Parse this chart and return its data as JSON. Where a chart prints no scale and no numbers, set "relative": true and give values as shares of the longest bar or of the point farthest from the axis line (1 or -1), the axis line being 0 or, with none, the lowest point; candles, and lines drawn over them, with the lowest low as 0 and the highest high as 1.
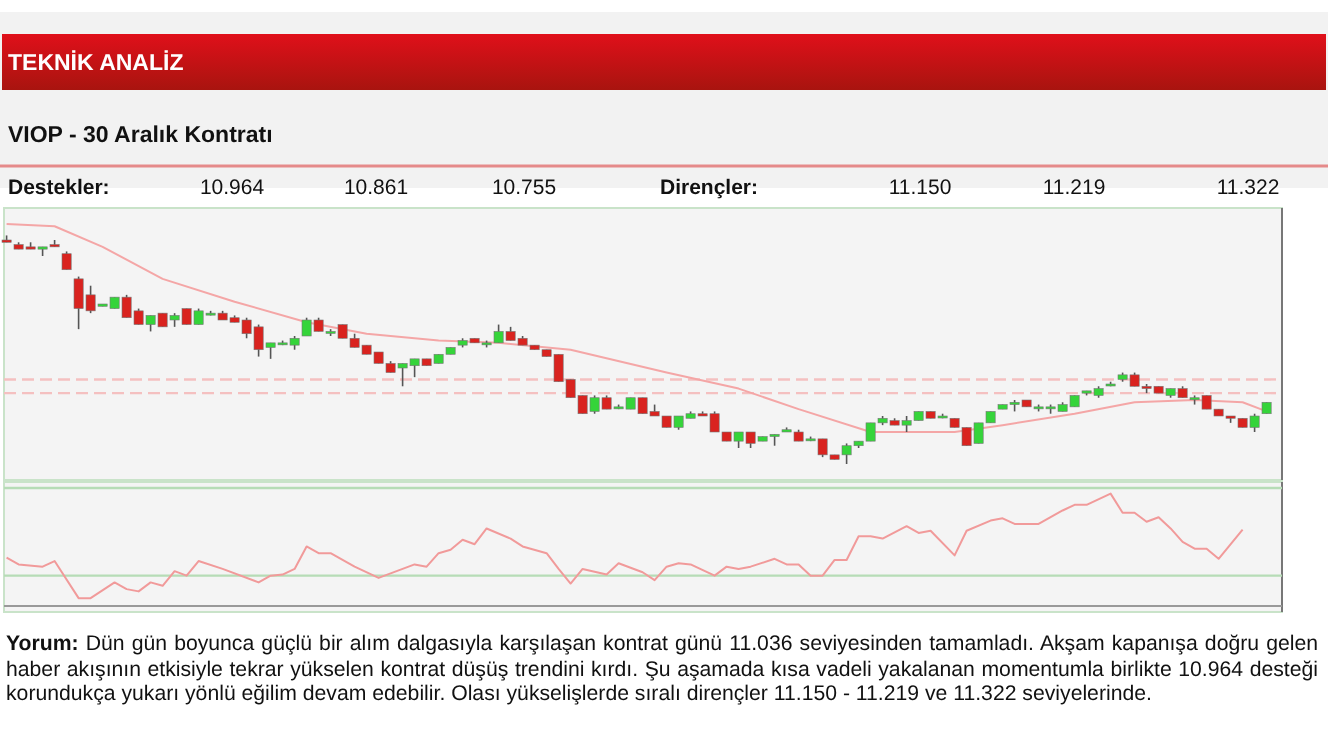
{
  "chart_data": [
    {
      "type": "candlestick",
      "title": "TEKNİK ANALİZ",
      "subtitle": "VIOP - 30 Aralık Kontratı",
      "relative": true,
      "annotations": [
        "Destekler:",
        "10.964",
        "10.861",
        "10.755",
        "Dirençler:",
        "11.150",
        "11.219",
        "11.322",
        "Yorum: Dün gün boyunca güçlü bir alım dalgasıyla karşılaşan kontrat günü 11.036 seviyesinden tamamladı. Akşam kapanışa doğru gelen haber akışının etkisiyle tekrar yükselen kontrat düşüş trendini kırdı. Şu aşamada kısa vadeli yakalanan momentumla birlikte 10.964 desteği korundukça yukarı yönlü eğilim devam edebilir. Olası yükselişlerde sıralı dirençler 11.150 - 11.219 ve 11.322 seviyelerinde."
      ],
      "categories": [
        null,
        null,
        null,
        null,
        null,
        null,
        null,
        null,
        null,
        null,
        null,
        null,
        null,
        null,
        null,
        null,
        null,
        null,
        null,
        null,
        null,
        null,
        null,
        null,
        null,
        null,
        null,
        null,
        null,
        null,
        null,
        null,
        null,
        null,
        null,
        null,
        null,
        null,
        null,
        null,
        null,
        null,
        null,
        null,
        null,
        null,
        null,
        null,
        null,
        null,
        null,
        null,
        null,
        null,
        null,
        null,
        null,
        null,
        null,
        null,
        null,
        null,
        null,
        null,
        null,
        null,
        null,
        null,
        null,
        null,
        null,
        null,
        null,
        null,
        null,
        null,
        null,
        null,
        null,
        null,
        null,
        null,
        null,
        null,
        null,
        null,
        null,
        null,
        null,
        null,
        null,
        null,
        null,
        null,
        null,
        null,
        null,
        null,
        null,
        null,
        null,
        null,
        null,
        null,
        null,
        null
      ],
      "ohlc": [
        [
          0.98,
          1,
          0.97,
          0.97
        ],
        [
          0.96,
          0.97,
          0.94,
          0.94
        ],
        [
          0.95,
          0.97,
          0.94,
          0.94
        ],
        [
          0.94,
          0.95,
          0.91,
          0.95
        ],
        [
          0.96,
          0.98,
          0.95,
          0.95
        ],
        [
          0.92,
          0.93,
          0.85,
          0.85
        ],
        [
          0.81,
          0.82,
          0.59,
          0.68
        ],
        [
          0.74,
          0.78,
          0.66,
          0.67
        ],
        [
          0.69,
          0.7,
          0.69,
          0.7
        ],
        [
          0.68,
          0.73,
          0.68,
          0.73
        ],
        [
          0.73,
          0.74,
          0.64,
          0.64
        ],
        [
          0.67,
          0.68,
          0.61,
          0.61
        ],
        [
          0.61,
          0.65,
          0.58,
          0.65
        ],
        [
          0.66,
          0.66,
          0.6,
          0.6
        ],
        [
          0.63,
          0.66,
          0.6,
          0.65
        ],
        [
          0.68,
          0.68,
          0.61,
          0.61
        ],
        [
          0.61,
          0.68,
          0.61,
          0.67
        ],
        [
          0.66,
          0.67,
          0.65,
          0.66
        ],
        [
          0.66,
          0.67,
          0.63,
          0.63
        ],
        [
          0.64,
          0.65,
          0.62,
          0.62
        ],
        [
          0.63,
          0.64,
          0.55,
          0.57
        ],
        [
          0.6,
          0.61,
          0.47,
          0.5
        ],
        [
          0.51,
          0.53,
          0.46,
          0.53
        ],
        [
          0.53,
          0.54,
          0.52,
          0.53
        ],
        [
          0.52,
          0.56,
          0.5,
          0.55
        ],
        [
          0.56,
          0.64,
          0.56,
          0.63
        ],
        [
          0.63,
          0.64,
          0.58,
          0.58
        ],
        [
          0.58,
          0.59,
          0.56,
          0.58
        ],
        [
          0.61,
          0.61,
          0.55,
          0.55
        ],
        [
          0.55,
          0.57,
          0.51,
          0.51
        ],
        [
          0.52,
          0.52,
          0.48,
          0.48
        ],
        [
          0.49,
          0.49,
          0.44,
          0.44
        ],
        [
          0.44,
          0.45,
          0.4,
          0.4
        ],
        [
          0.42,
          0.44,
          0.34,
          0.44
        ],
        [
          0.43,
          0.46,
          0.38,
          0.46
        ],
        [
          0.46,
          0.46,
          0.43,
          0.43
        ],
        [
          0.44,
          0.48,
          0.44,
          0.48
        ],
        [
          0.48,
          0.51,
          0.48,
          0.51
        ],
        [
          0.52,
          0.55,
          0.51,
          0.54
        ],
        [
          0.55,
          0.55,
          0.53,
          0.53
        ],
        [
          0.53,
          0.54,
          0.51,
          0.53
        ],
        [
          0.53,
          0.61,
          0.53,
          0.58
        ],
        [
          0.58,
          0.6,
          0.54,
          0.54
        ],
        [
          0.55,
          0.56,
          0.52,
          0.52
        ],
        [
          0.52,
          0.52,
          0.5,
          0.5
        ],
        [
          0.5,
          0.5,
          0.47,
          0.47
        ],
        [
          0.48,
          0.48,
          0.36,
          0.36
        ],
        [
          0.37,
          0.37,
          0.29,
          0.29
        ],
        [
          0.3,
          0.3,
          0.22,
          0.22
        ],
        [
          0.23,
          0.3,
          0.22,
          0.29
        ],
        [
          0.29,
          0.3,
          0.24,
          0.24
        ],
        [
          0.25,
          0.26,
          0.24,
          0.25
        ],
        [
          0.24,
          0.29,
          0.24,
          0.29
        ],
        [
          0.29,
          0.29,
          0.22,
          0.22
        ],
        [
          0.23,
          0.26,
          0.21,
          0.21
        ],
        [
          0.21,
          0.21,
          0.16,
          0.16
        ],
        [
          0.16,
          0.21,
          0.15,
          0.21
        ],
        [
          0.2,
          0.23,
          0.2,
          0.22
        ],
        [
          0.22,
          0.23,
          0.21,
          0.21
        ],
        [
          0.22,
          0.23,
          0.14,
          0.14
        ],
        [
          0.14,
          0.14,
          0.1,
          0.1
        ],
        [
          0.1,
          0.14,
          0.07,
          0.14
        ],
        [
          0.14,
          0.14,
          0.07,
          0.09
        ],
        [
          0.1,
          0.12,
          0.1,
          0.12
        ],
        [
          0.12,
          0.13,
          0.08,
          0.13
        ],
        [
          0.14,
          0.16,
          0.14,
          0.15
        ],
        [
          0.14,
          0.15,
          0.1,
          0.1
        ],
        [
          0.11,
          0.12,
          0.1,
          0.11
        ],
        [
          0.11,
          0.11,
          0.03,
          0.04
        ],
        [
          0.04,
          0.04,
          0.02,
          0.02
        ],
        [
          0.04,
          0.09,
          0,
          0.08
        ],
        [
          0.08,
          0.1,
          0.07,
          0.1
        ],
        [
          0.1,
          0.18,
          0.1,
          0.18
        ],
        [
          0.18,
          0.21,
          0.17,
          0.2
        ],
        [
          0.19,
          0.2,
          0.17,
          0.17
        ],
        [
          0.17,
          0.21,
          0.14,
          0.19
        ],
        [
          0.19,
          0.23,
          0.19,
          0.23
        ],
        [
          0.23,
          0.23,
          0.2,
          0.2
        ],
        [
          0.21,
          0.22,
          0.2,
          0.21
        ],
        [
          0.2,
          0.2,
          0.16,
          0.16
        ],
        [
          0.16,
          0.16,
          0.08,
          0.08
        ],
        [
          0.09,
          0.18,
          0.09,
          0.18
        ],
        [
          0.18,
          0.23,
          0.18,
          0.23
        ],
        [
          0.24,
          0.26,
          0.24,
          0.26
        ],
        [
          0.26,
          0.28,
          0.23,
          0.27
        ],
        [
          0.28,
          0.28,
          0.25,
          0.25
        ],
        [
          0.25,
          0.26,
          0.23,
          0.25
        ],
        [
          0.25,
          0.26,
          0.22,
          0.25
        ],
        [
          0.23,
          0.27,
          0.23,
          0.26
        ],
        [
          0.25,
          0.3,
          0.25,
          0.3
        ],
        [
          0.31,
          0.32,
          0.3,
          0.32
        ],
        [
          0.3,
          0.34,
          0.29,
          0.33
        ],
        [
          0.35,
          0.36,
          0.34,
          0.35
        ],
        [
          0.37,
          0.4,
          0.36,
          0.39
        ],
        [
          0.39,
          0.4,
          0.34,
          0.34
        ],
        [
          0.34,
          0.35,
          0.31,
          0.33
        ],
        [
          0.34,
          0.34,
          0.31,
          0.31
        ],
        [
          0.3,
          0.33,
          0.29,
          0.33
        ],
        [
          0.33,
          0.34,
          0.29,
          0.29
        ],
        [
          0.29,
          0.3,
          0.26,
          0.29
        ],
        [
          0.3,
          0.3,
          0.24,
          0.24
        ],
        [
          0.24,
          0.24,
          0.21,
          0.21
        ],
        [
          0.21,
          0.21,
          0.18,
          0.2
        ],
        [
          0.2,
          0.2,
          0.16,
          0.16
        ],
        [
          0.16,
          0.22,
          0.14,
          0.21
        ],
        [
          0.22,
          0.27,
          0.22,
          0.27
        ]
      ],
      "colors": [
        "#d9231f",
        "#d9231f",
        "#d9231f",
        "#35d43a",
        "#d9231f",
        "#d9231f",
        "#d9231f",
        "#d9231f",
        "#35d43a",
        "#35d43a",
        "#d9231f",
        "#d9231f",
        "#35d43a",
        "#d9231f",
        "#35d43a",
        "#d9231f",
        "#35d43a",
        "#35d43a",
        "#d9231f",
        "#d9231f",
        "#d9231f",
        "#d9231f",
        "#35d43a",
        "#35d43a",
        "#35d43a",
        "#35d43a",
        "#d9231f",
        "#35d43a",
        "#d9231f",
        "#d9231f",
        "#d9231f",
        "#d9231f",
        "#d9231f",
        "#35d43a",
        "#35d43a",
        "#d9231f",
        "#35d43a",
        "#35d43a",
        "#35d43a",
        "#d9231f",
        "#35d43a",
        "#35d43a",
        "#d9231f",
        "#d9231f",
        "#d9231f",
        "#d9231f",
        "#d9231f",
        "#d9231f",
        "#d9231f",
        "#35d43a",
        "#d9231f",
        "#35d43a",
        "#35d43a",
        "#d9231f",
        "#d9231f",
        "#d9231f",
        "#35d43a",
        "#35d43a",
        "#d9231f",
        "#d9231f",
        "#d9231f",
        "#35d43a",
        "#d9231f",
        "#35d43a",
        "#35d43a",
        "#35d43a",
        "#d9231f",
        "#35d43a",
        "#d9231f",
        "#d9231f",
        "#35d43a",
        "#35d43a",
        "#35d43a",
        "#35d43a",
        "#d9231f",
        "#35d43a",
        "#35d43a",
        "#d9231f",
        "#35d43a",
        "#d9231f",
        "#d9231f",
        "#35d43a",
        "#35d43a",
        "#35d43a",
        "#35d43a",
        "#d9231f",
        "#35d43a",
        "#35d43a",
        "#35d43a",
        "#35d43a",
        "#35d43a",
        "#35d43a",
        "#35d43a",
        "#35d43a",
        "#d9231f",
        "#d9231f",
        "#d9231f",
        "#35d43a",
        "#d9231f",
        "#35d43a",
        "#d9231f",
        "#d9231f",
        "#d9231f",
        "#d9231f",
        "#35d43a",
        "#35d43a"
      ],
      "series": [
        {
          "type": "line",
          "color": "#f4a6a6",
          "values": [
            1.05,
            null,
            null,
            null,
            1.04,
            null,
            null,
            null,
            0.95,
            null,
            null,
            null,
            null,
            0.81,
            null,
            null,
            null,
            null,
            null,
            0.71,
            null,
            null,
            null,
            null,
            null,
            0.62,
            null,
            null,
            null,
            null,
            0.57,
            null,
            null,
            null,
            null,
            null,
            0.54,
            null,
            null,
            null,
            null,
            0.53,
            null,
            null,
            null,
            null,
            null,
            0.5,
            null,
            null,
            null,
            null,
            null,
            null,
            null,
            0.4,
            null,
            null,
            null,
            null,
            null,
            0.33,
            null,
            null,
            null,
            null,
            0.24,
            null,
            null,
            null,
            null,
            null,
            0.14,
            null,
            null,
            null,
            null,
            null,
            null,
            0.14,
            null,
            null,
            null,
            0.17,
            null,
            null,
            null,
            null,
            null,
            0.22,
            null,
            null,
            null,
            null,
            0.27,
            null,
            null,
            null,
            null,
            0.28,
            null,
            null,
            null,
            0.27,
            null,
            0.23
          ]
        }
      ],
      "ref_lines": [
        {
          "axis": "y",
          "value": 0.37,
          "color": "#f4c0c0",
          "line_style": "dashed"
        },
        {
          "axis": "y",
          "value": 0.31,
          "color": "#f4c0c0",
          "line_style": "dashed"
        }
      ]
    },
    {
      "type": "line",
      "relative": true,
      "categories": [
        null,
        null,
        null,
        null,
        null,
        null,
        null,
        null,
        null,
        null,
        null,
        null,
        null,
        null,
        null,
        null,
        null,
        null,
        null,
        null,
        null,
        null,
        null,
        null,
        null,
        null,
        null,
        null,
        null,
        null,
        null,
        null,
        null,
        null,
        null,
        null,
        null,
        null,
        null,
        null,
        null,
        null,
        null,
        null,
        null,
        null,
        null,
        null,
        null,
        null,
        null,
        null,
        null,
        null,
        null,
        null,
        null,
        null,
        null,
        null,
        null,
        null,
        null,
        null,
        null,
        null,
        null,
        null,
        null,
        null,
        null,
        null,
        null,
        null,
        null,
        null,
        null,
        null,
        null,
        null,
        null,
        null,
        null,
        null,
        null,
        null,
        null,
        null,
        null,
        null,
        null,
        null,
        null,
        null,
        null,
        null,
        null,
        null,
        null,
        null,
        null,
        null,
        null,
        null,
        null,
        null
      ],
      "series": [
        {
          "color": "#f19a9a",
          "values": [
            0.43,
            0.37,
            null,
            0.35,
            0.4,
            null,
            0.07,
            0.07,
            null,
            0.21,
            0.15,
            0.13,
            0.21,
            0.18,
            0.31,
            0.27,
            0.4,
            null,
            0.33,
            null,
            null,
            0.21,
            0.27,
            0.28,
            0.33,
            0.53,
            0.47,
            0.47,
            null,
            0.35,
            null,
            0.25,
            null,
            null,
            0.37,
            0.35,
            0.47,
            0.5,
            0.59,
            0.55,
            0.69,
            null,
            0.6,
            0.53,
            null,
            0.47,
            0.33,
            0.2,
            0.33,
            null,
            0.28,
            0.38,
            null,
            0.3,
            0.23,
            0.35,
            0.38,
            0.37,
            null,
            0.27,
            0.35,
            0.33,
            0.35,
            null,
            0.42,
            0.37,
            0.37,
            0.27,
            0.27,
            0.41,
            0.41,
            0.62,
            0.62,
            0.6,
            null,
            0.71,
            0.65,
            0.67,
            null,
            0.45,
            0.67,
            null,
            0.76,
            0.78,
            0.73,
            null,
            0.73,
            null,
            0.85,
            0.9,
            0.9,
            null,
            1,
            0.83,
            0.83,
            0.75,
            0.79,
            0.69,
            0.57,
            0.51,
            0.51,
            0.42,
            null,
            0.68,
            null,
            null
          ]
        }
      ],
      "ref_lines": [
        {
          "axis": "y",
          "value": 1.05,
          "color": "#b6dcb6"
        },
        {
          "axis": "y",
          "value": 0.27,
          "color": "#b6dcb6"
        }
      ]
    }
  ]
}
